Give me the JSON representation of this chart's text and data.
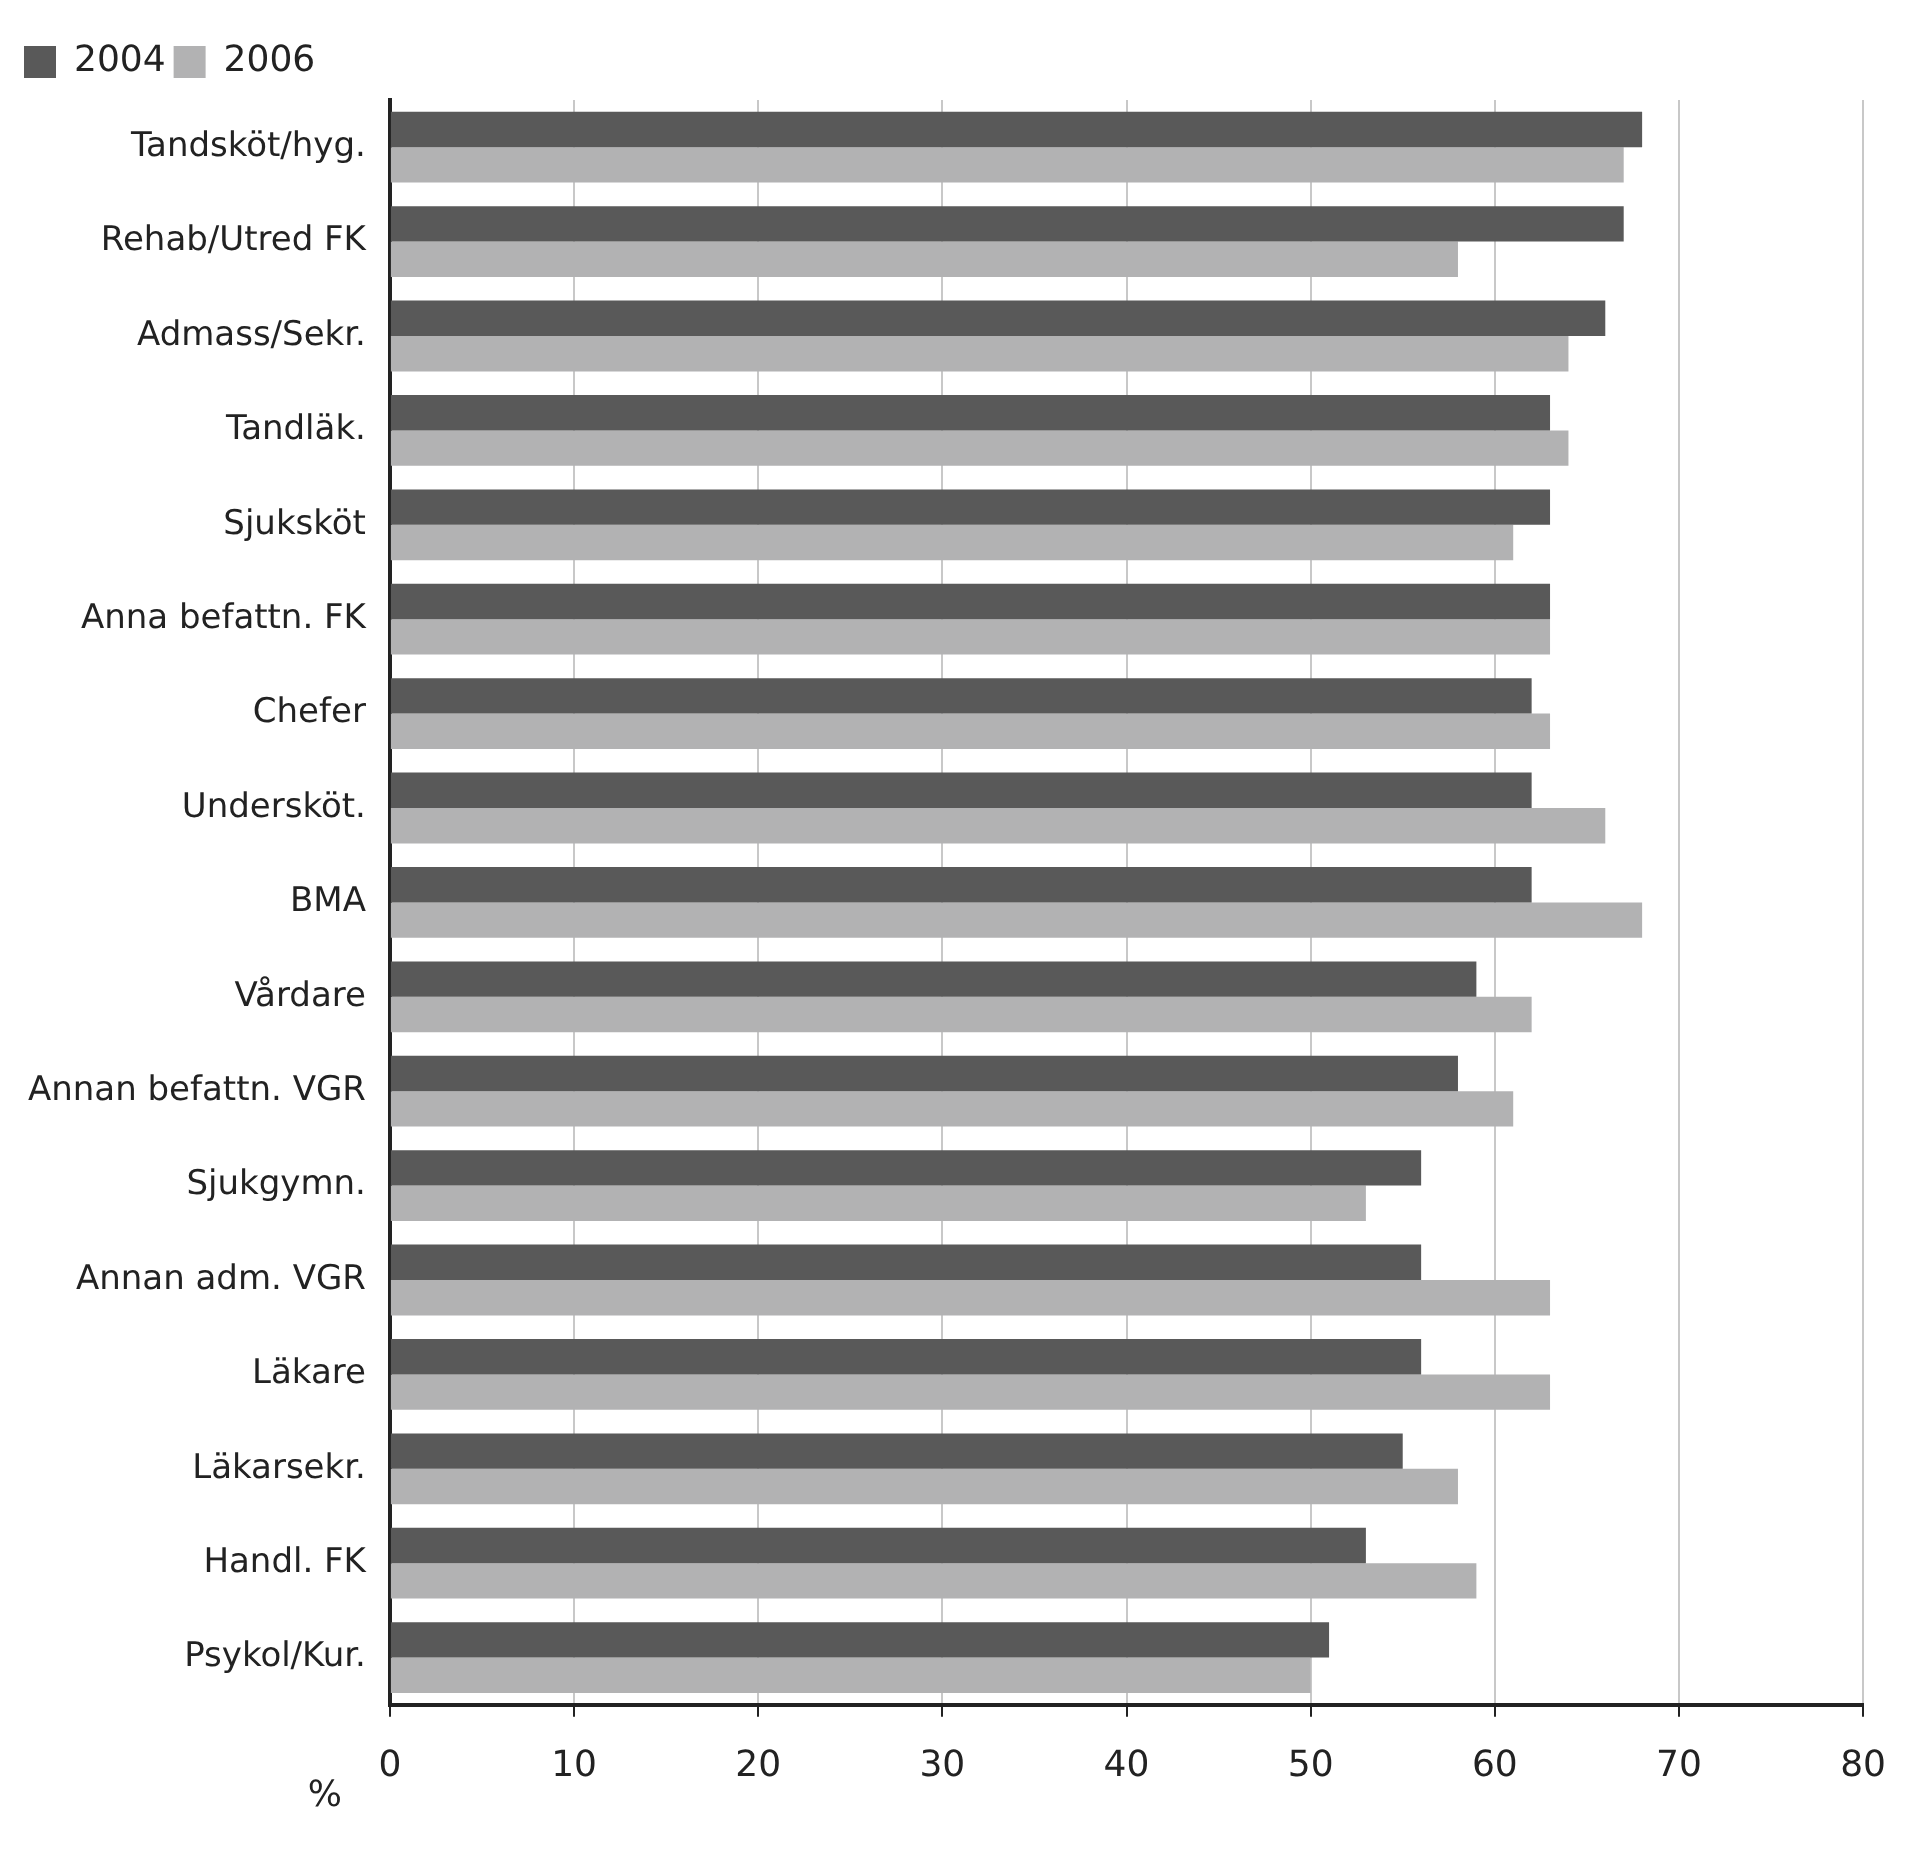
{
  "chart_data": {
    "type": "bar",
    "orientation": "horizontal",
    "xlabel": "%",
    "categories": [
      "Tandsköt/hyg.",
      "Rehab/Utred FK",
      "Admass/Sekr.",
      "Tandläk.",
      "Sjuksköt",
      "Anna befattn. FK",
      "Chefer",
      "Undersköt.",
      "BMA",
      "Vårdare",
      "Annan befattn. VGR",
      "Sjukgymn.",
      "Annan adm. VGR",
      "Läkare",
      "Läkarsekr.",
      "Handl. FK",
      "Psykol/Kur."
    ],
    "series": [
      {
        "name": "2004",
        "color": "#595959",
        "values": [
          68,
          67,
          66,
          63,
          63,
          63,
          62,
          62,
          62,
          59,
          58,
          56,
          56,
          56,
          55,
          53,
          51
        ]
      },
      {
        "name": "2006",
        "color": "#b2b2b3",
        "values": [
          67,
          58,
          64,
          64,
          61,
          63,
          63,
          66,
          68,
          62,
          61,
          53,
          63,
          63,
          58,
          59,
          50
        ]
      }
    ],
    "xlim": [
      0,
      80
    ],
    "xticks": [
      0,
      10,
      20,
      30,
      40,
      50,
      60,
      70,
      80
    ],
    "grid": "x",
    "legend": "top left"
  }
}
